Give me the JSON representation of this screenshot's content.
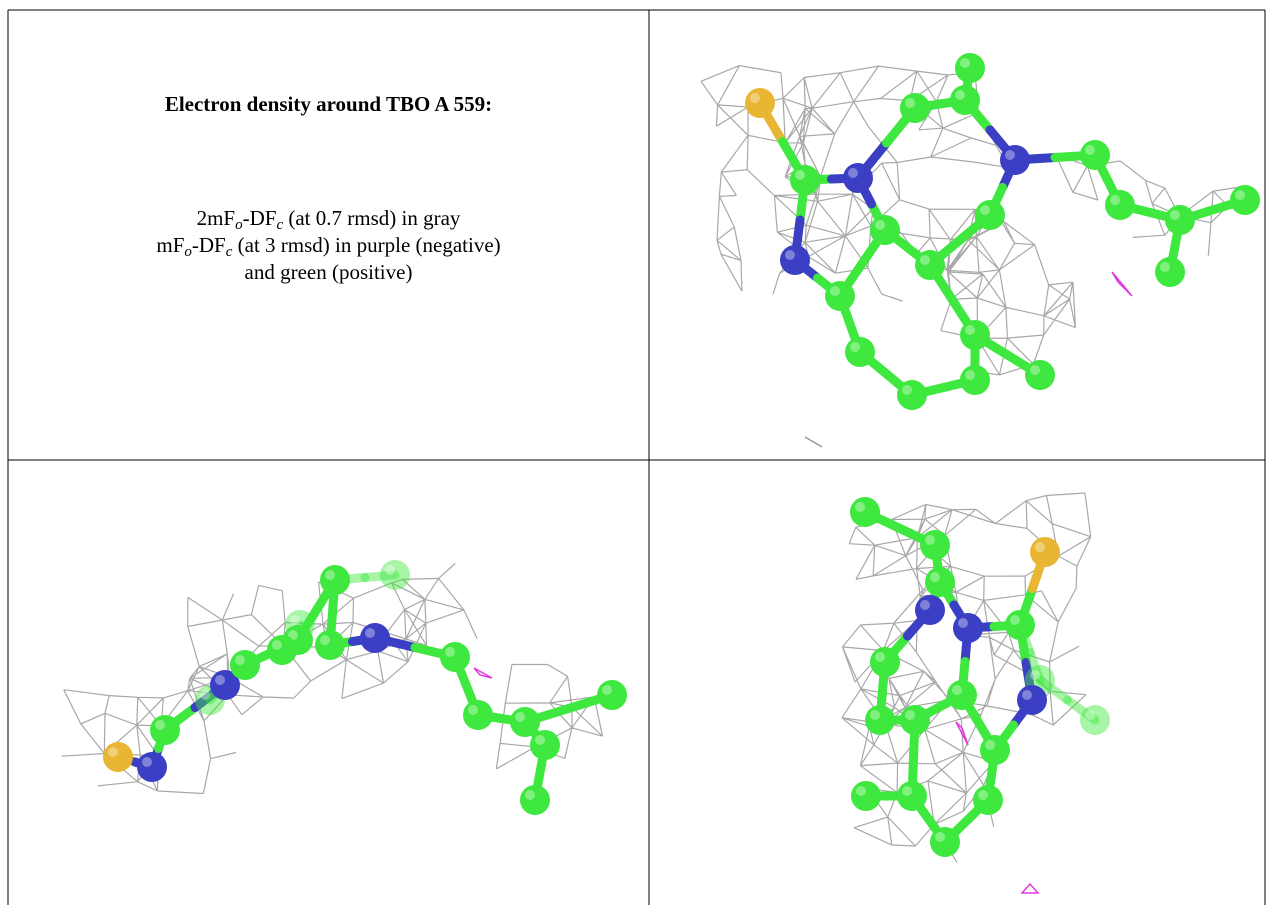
{
  "header": {
    "title": "Electron density around TBO A 559:"
  },
  "caption": {
    "lines": [
      [
        "2mF",
        "o",
        "-DF",
        "c",
        " (at 0.7 rmsd) in gray"
      ],
      [
        "mF",
        "o",
        "-DF",
        "c",
        " (at 3 rmsd) in purple (negative)"
      ],
      [
        "and green (positive)"
      ]
    ]
  }
}
